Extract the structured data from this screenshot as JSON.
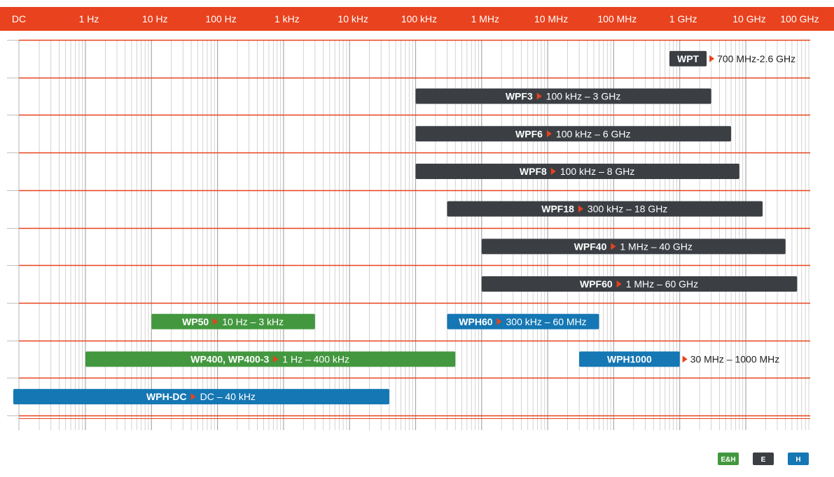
{
  "chart_data": {
    "type": "bar",
    "orientation": "horizontal-range",
    "x_scale": "log",
    "x_ticks": [
      "DC",
      "1 Hz",
      "10 Hz",
      "100 Hz",
      "1 kHz",
      "10 kHz",
      "100 kHz",
      "1 MHz",
      "10 MHz",
      "100 MHz",
      "1 GHz",
      "10 GHz",
      "100 GHz"
    ],
    "grid": true,
    "legend_position": "bottom-right",
    "colors": {
      "header": "#e8421e",
      "row_line": "#e8421e",
      "grid_line": "#c8c8c8",
      "E": "#3b3f44",
      "H": "#1577b3",
      "E&H": "#43983f",
      "arrow": "#e8421e"
    },
    "legend": [
      {
        "label": "E&H",
        "color": "#43983f"
      },
      {
        "label": "E",
        "color": "#3b3f44"
      },
      {
        "label": "H",
        "color": "#1577b3"
      }
    ],
    "bars": [
      {
        "row": 0,
        "name": "WPT",
        "range": "700 MHz-2.6 GHz",
        "start_hz": 700000000,
        "end_hz": 2600000000,
        "field": "E",
        "label_outside": true
      },
      {
        "row": 1,
        "name": "WPF3",
        "range": "100 kHz – 3 GHz",
        "start_hz": 100000,
        "end_hz": 3000000000,
        "field": "E"
      },
      {
        "row": 2,
        "name": "WPF6",
        "range": "100 kHz – 6 GHz",
        "start_hz": 100000,
        "end_hz": 6000000000,
        "field": "E"
      },
      {
        "row": 3,
        "name": "WPF8",
        "range": "100 kHz – 8 GHz",
        "start_hz": 100000,
        "end_hz": 8000000000,
        "field": "E"
      },
      {
        "row": 4,
        "name": "WPF18",
        "range": "300 kHz – 18 GHz",
        "start_hz": 300000,
        "end_hz": 18000000000,
        "field": "E"
      },
      {
        "row": 5,
        "name": "WPF40",
        "range": "1 MHz – 40 GHz",
        "start_hz": 1000000,
        "end_hz": 40000000000,
        "field": "E"
      },
      {
        "row": 6,
        "name": "WPF60",
        "range": "1 MHz – 60 GHz",
        "start_hz": 1000000,
        "end_hz": 60000000000,
        "field": "E"
      },
      {
        "row": 7,
        "name": "WP50",
        "range": "10 Hz – 3 kHz",
        "start_hz": 10,
        "end_hz": 3000,
        "field": "E&H"
      },
      {
        "row": 7,
        "name": "WPH60",
        "range": "300 kHz – 60 MHz",
        "start_hz": 300000,
        "end_hz": 60000000,
        "field": "H"
      },
      {
        "row": 8,
        "name": "WP400, WP400-3",
        "range": "1 Hz – 400 kHz",
        "start_hz": 1,
        "end_hz": 400000,
        "field": "E&H"
      },
      {
        "row": 8,
        "name": "WPH1000",
        "range": "30 MHz – 1000 MHz",
        "start_hz": 30000000,
        "end_hz": 1000000000,
        "field": "H",
        "label_outside": true
      },
      {
        "row": 9,
        "name": "WPH-DC",
        "range": "DC – 40 kHz",
        "start_hz": 0,
        "end_hz": 40000,
        "field": "H"
      }
    ]
  }
}
